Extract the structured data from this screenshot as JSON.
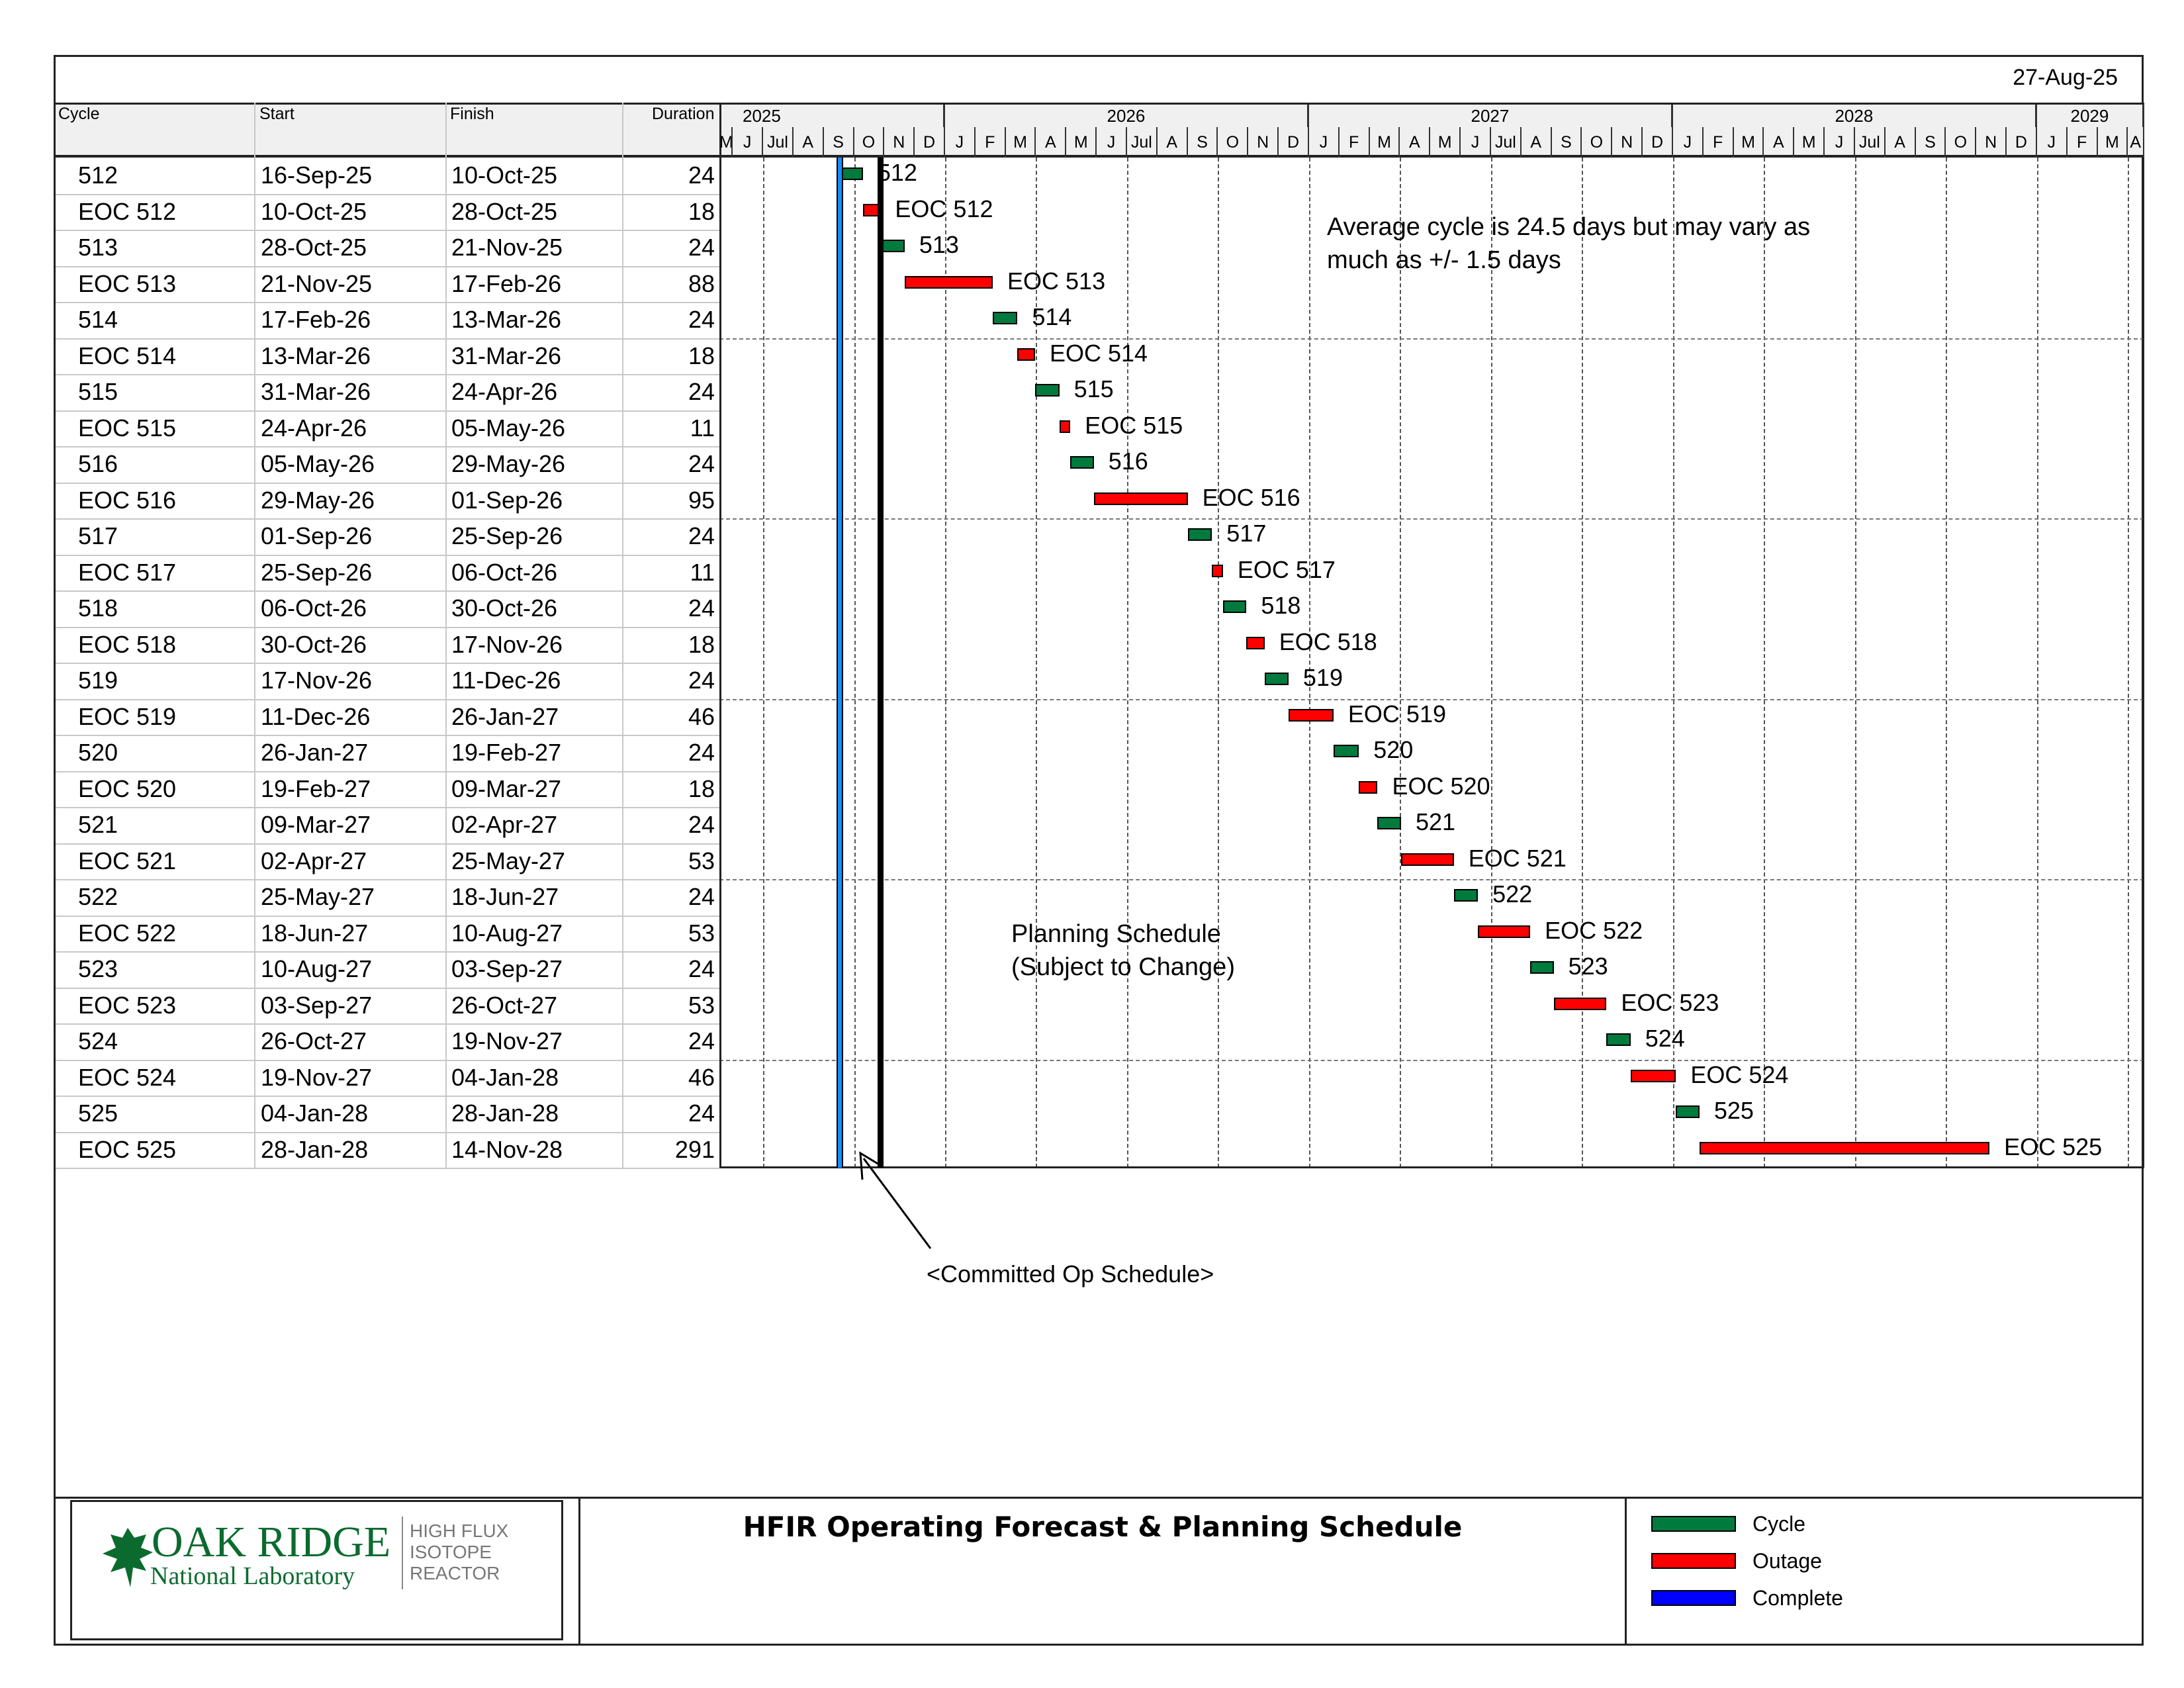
{
  "header": {
    "date": "27-Aug-25"
  },
  "table": {
    "columns": [
      "Cycle",
      "Start",
      "Finish",
      "Duration"
    ]
  },
  "timeline": {
    "years": [
      "2025",
      "2026",
      "2027",
      "2028",
      "2029"
    ],
    "months": [
      "M",
      "J",
      "Jul",
      "A",
      "S",
      "O",
      "N",
      "D",
      "J",
      "F",
      "M",
      "A",
      "M",
      "J",
      "Jul",
      "A",
      "S",
      "O",
      "N",
      "D",
      "J",
      "F",
      "M",
      "A",
      "M",
      "J",
      "Jul",
      "A",
      "S",
      "O",
      "N",
      "D",
      "J",
      "F",
      "M",
      "A",
      "M",
      "J",
      "Jul",
      "A",
      "S",
      "O",
      "N",
      "D",
      "J",
      "F",
      "M",
      "A"
    ]
  },
  "annotations": {
    "average_line1": "Average cycle is 24.5 days but may vary as",
    "average_line2": "much as +/- 1.5 days",
    "planning_line1": "Planning Schedule",
    "planning_line2": "(Subject to Change)",
    "committed": "<Committed Op Schedule>",
    "complete_marker_date": "16-Sep-25",
    "committed_marker_date": "28-Oct-25"
  },
  "footer": {
    "title": "HFIR Operating Forecast & Planning Schedule",
    "logo_line1": "OAK RIDGE",
    "logo_line2": "National Laboratory",
    "logo_side": [
      "HIGH FLUX",
      "ISOTOPE",
      "REACTOR"
    ],
    "legend": [
      {
        "label": "Cycle",
        "color": "#007a3d"
      },
      {
        "label": "Outage",
        "color": "#ff0000"
      },
      {
        "label": "Complete",
        "color": "#0000ff"
      }
    ]
  },
  "chart_data": {
    "type": "gantt",
    "title": "HFIR Operating Forecast & Planning Schedule",
    "x_range": [
      "2025-05-15",
      "2029-04-15"
    ],
    "colors": {
      "cycle": "#007a3d",
      "outage": "#ff0000",
      "complete": "#1a8cff"
    },
    "tasks": [
      {
        "name": "512",
        "start": "16-Sep-25",
        "finish": "10-Oct-25",
        "duration": 24,
        "kind": "cycle"
      },
      {
        "name": "EOC 512",
        "start": "10-Oct-25",
        "finish": "28-Oct-25",
        "duration": 18,
        "kind": "outage"
      },
      {
        "name": "513",
        "start": "28-Oct-25",
        "finish": "21-Nov-25",
        "duration": 24,
        "kind": "cycle"
      },
      {
        "name": "EOC 513",
        "start": "21-Nov-25",
        "finish": "17-Feb-26",
        "duration": 88,
        "kind": "outage"
      },
      {
        "name": "514",
        "start": "17-Feb-26",
        "finish": "13-Mar-26",
        "duration": 24,
        "kind": "cycle"
      },
      {
        "name": "EOC 514",
        "start": "13-Mar-26",
        "finish": "31-Mar-26",
        "duration": 18,
        "kind": "outage"
      },
      {
        "name": "515",
        "start": "31-Mar-26",
        "finish": "24-Apr-26",
        "duration": 24,
        "kind": "cycle"
      },
      {
        "name": "EOC 515",
        "start": "24-Apr-26",
        "finish": "05-May-26",
        "duration": 11,
        "kind": "outage"
      },
      {
        "name": "516",
        "start": "05-May-26",
        "finish": "29-May-26",
        "duration": 24,
        "kind": "cycle"
      },
      {
        "name": "EOC 516",
        "start": "29-May-26",
        "finish": "01-Sep-26",
        "duration": 95,
        "kind": "outage"
      },
      {
        "name": "517",
        "start": "01-Sep-26",
        "finish": "25-Sep-26",
        "duration": 24,
        "kind": "cycle"
      },
      {
        "name": "EOC 517",
        "start": "25-Sep-26",
        "finish": "06-Oct-26",
        "duration": 11,
        "kind": "outage"
      },
      {
        "name": "518",
        "start": "06-Oct-26",
        "finish": "30-Oct-26",
        "duration": 24,
        "kind": "cycle"
      },
      {
        "name": "EOC 518",
        "start": "30-Oct-26",
        "finish": "17-Nov-26",
        "duration": 18,
        "kind": "outage"
      },
      {
        "name": "519",
        "start": "17-Nov-26",
        "finish": "11-Dec-26",
        "duration": 24,
        "kind": "cycle"
      },
      {
        "name": "EOC 519",
        "start": "11-Dec-26",
        "finish": "26-Jan-27",
        "duration": 46,
        "kind": "outage"
      },
      {
        "name": "520",
        "start": "26-Jan-27",
        "finish": "19-Feb-27",
        "duration": 24,
        "kind": "cycle"
      },
      {
        "name": "EOC 520",
        "start": "19-Feb-27",
        "finish": "09-Mar-27",
        "duration": 18,
        "kind": "outage"
      },
      {
        "name": "521",
        "start": "09-Mar-27",
        "finish": "02-Apr-27",
        "duration": 24,
        "kind": "cycle"
      },
      {
        "name": "EOC 521",
        "start": "02-Apr-27",
        "finish": "25-May-27",
        "duration": 53,
        "kind": "outage"
      },
      {
        "name": "522",
        "start": "25-May-27",
        "finish": "18-Jun-27",
        "duration": 24,
        "kind": "cycle"
      },
      {
        "name": "EOC 522",
        "start": "18-Jun-27",
        "finish": "10-Aug-27",
        "duration": 53,
        "kind": "outage"
      },
      {
        "name": "523",
        "start": "10-Aug-27",
        "finish": "03-Sep-27",
        "duration": 24,
        "kind": "cycle"
      },
      {
        "name": "EOC 523",
        "start": "03-Sep-27",
        "finish": "26-Oct-27",
        "duration": 53,
        "kind": "outage"
      },
      {
        "name": "524",
        "start": "26-Oct-27",
        "finish": "19-Nov-27",
        "duration": 24,
        "kind": "cycle"
      },
      {
        "name": "EOC 524",
        "start": "19-Nov-27",
        "finish": "04-Jan-28",
        "duration": 46,
        "kind": "outage"
      },
      {
        "name": "525",
        "start": "04-Jan-28",
        "finish": "28-Jan-28",
        "duration": 24,
        "kind": "cycle"
      },
      {
        "name": "EOC 525",
        "start": "28-Jan-28",
        "finish": "14-Nov-28",
        "duration": 291,
        "kind": "outage"
      }
    ]
  }
}
